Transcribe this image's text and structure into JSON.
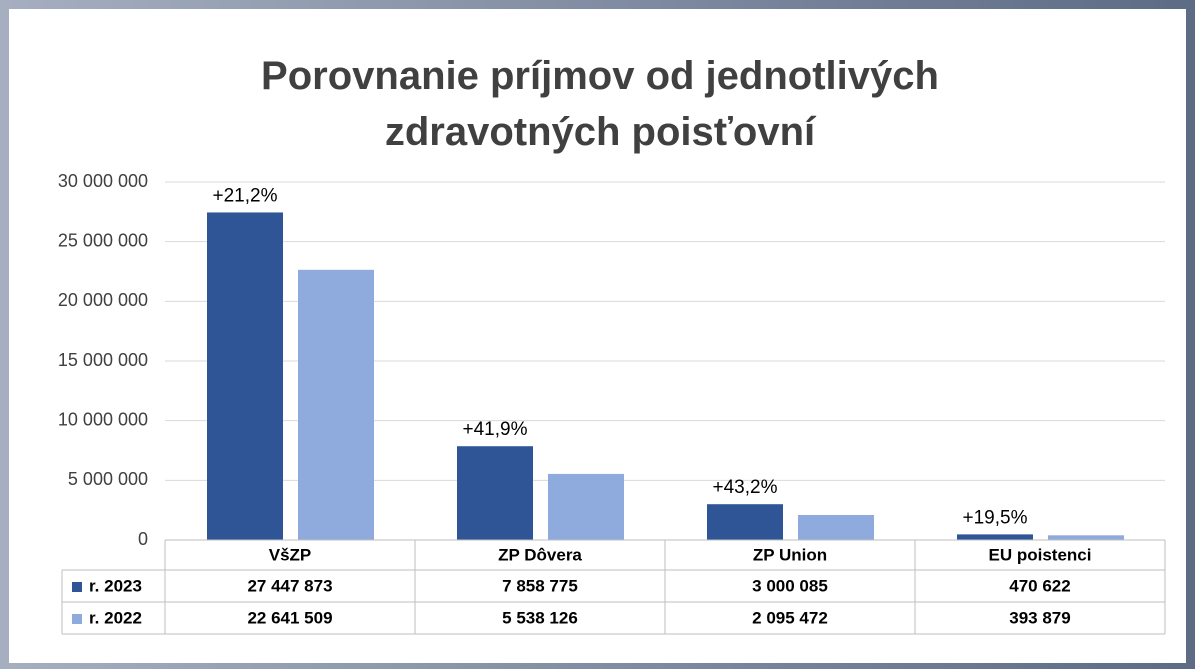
{
  "chart_data": {
    "type": "bar",
    "title": "Porovnanie príjmov od jednotlivých zdravotných poisťovní",
    "categories": [
      "VšZP",
      "ZP Dôvera",
      "ZP Union",
      "EU poistenci"
    ],
    "series": [
      {
        "name": "r. 2023",
        "color": "#2f5597",
        "values": [
          27447873,
          7858775,
          3000085,
          470622
        ],
        "value_labels": [
          "27 447 873",
          "7 858 775",
          "3 000 085",
          "470 622"
        ]
      },
      {
        "name": "r. 2022",
        "color": "#8faadc",
        "values": [
          22641509,
          5538126,
          2095472,
          393879
        ],
        "value_labels": [
          "22 641 509",
          "5 538 126",
          "2 095 472",
          "393 879"
        ]
      }
    ],
    "annotations": [
      "+21,2%",
      "+41,9%",
      "+43,2%",
      "+19,5%"
    ],
    "ylim": [
      0,
      30000000
    ],
    "yticks": [
      0,
      {
        "value": 5000000,
        "label": "5 000 000"
      },
      {
        "value": 10000000,
        "label": "10 000 000"
      },
      {
        "value": 15000000,
        "label": "15 000 000"
      },
      {
        "value": 20000000,
        "label": "20 000 000"
      },
      {
        "value": 25000000,
        "label": "25 000 000"
      },
      {
        "value": 30000000,
        "label": "30 000 000"
      }
    ],
    "grid": true
  }
}
